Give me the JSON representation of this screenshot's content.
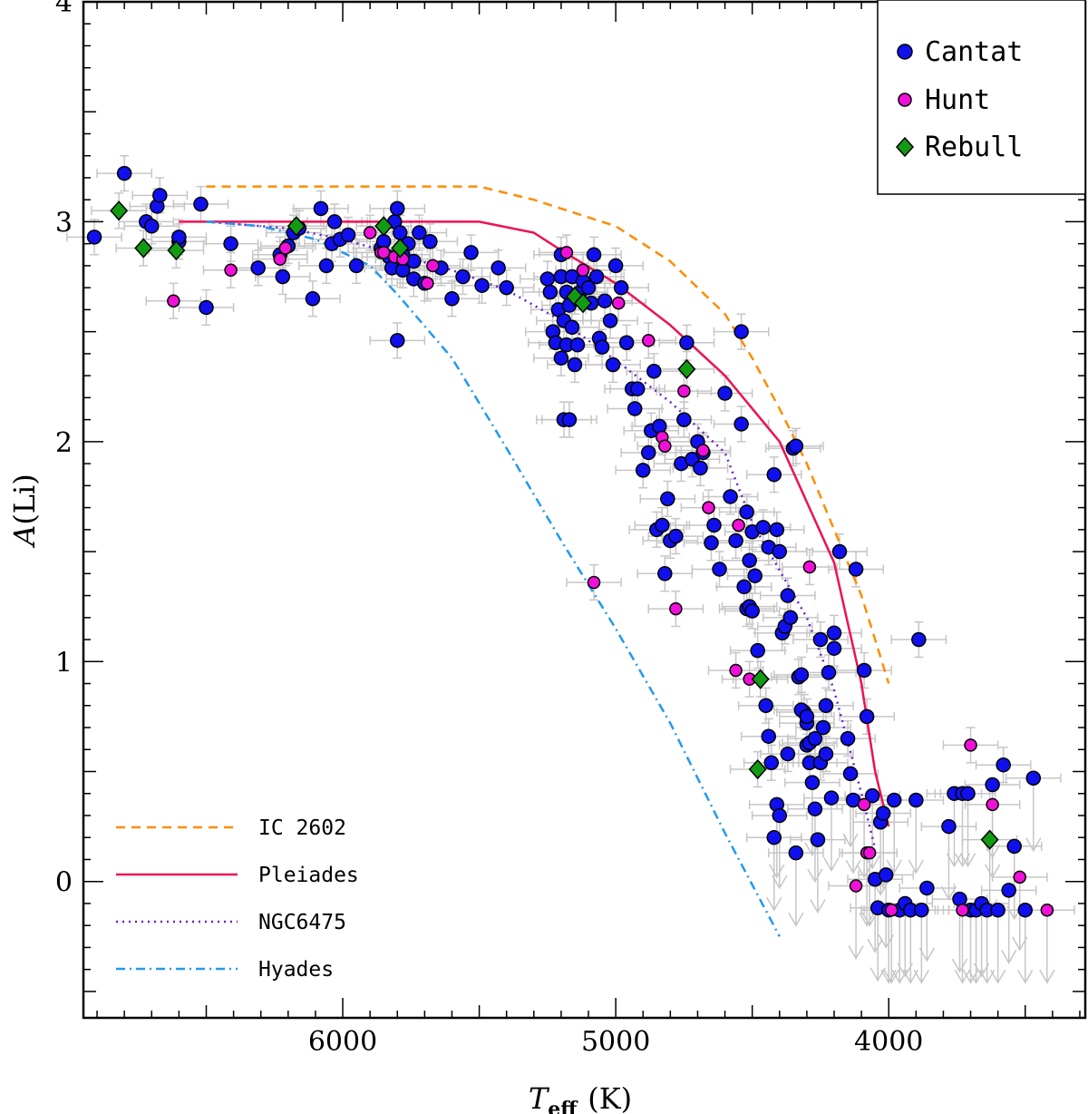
{
  "chart_data": {
    "type": "scatter",
    "title": "",
    "xlabel": {
      "symbol": "T",
      "subscript": "eff",
      "unit": "(K)"
    },
    "ylabel": {
      "symbol": "A",
      "rest": "(Li)"
    },
    "xlim": [
      6950,
      3280
    ],
    "ylim": [
      -0.62,
      4.0
    ],
    "xticks": [
      6000,
      5000,
      4000
    ],
    "yticks": [
      0,
      1,
      2,
      3,
      4
    ],
    "legend_position": "top-right",
    "point_series": [
      {
        "name": "Cantat",
        "marker": "circle",
        "color": "#1010ee",
        "points": [
          [
            6910,
            2.93
          ],
          [
            6800,
            3.22
          ],
          [
            6720,
            3.0
          ],
          [
            6700,
            2.98
          ],
          [
            6680,
            3.07
          ],
          [
            6670,
            3.12
          ],
          [
            6600,
            2.91
          ],
          [
            6600,
            2.93
          ],
          [
            6520,
            3.08
          ],
          [
            6500,
            2.61
          ],
          [
            6410,
            2.9
          ],
          [
            6310,
            2.79
          ],
          [
            6230,
            2.85
          ],
          [
            6220,
            2.75
          ],
          [
            6200,
            2.89
          ],
          [
            6180,
            2.95
          ],
          [
            6160,
            2.97
          ],
          [
            6110,
            2.65
          ],
          [
            6080,
            3.06
          ],
          [
            6060,
            2.8
          ],
          [
            6040,
            2.9
          ],
          [
            6030,
            3.0
          ],
          [
            6010,
            2.92
          ],
          [
            5980,
            2.94
          ],
          [
            5950,
            2.8
          ],
          [
            5860,
            2.88
          ],
          [
            5850,
            2.91
          ],
          [
            5830,
            2.84
          ],
          [
            5820,
            2.79
          ],
          [
            5810,
            3.0
          ],
          [
            5800,
            3.06
          ],
          [
            5790,
            2.95
          ],
          [
            5780,
            2.78
          ],
          [
            5800,
            2.46
          ],
          [
            5780,
            2.85
          ],
          [
            5760,
            2.9
          ],
          [
            5740,
            2.82
          ],
          [
            5740,
            2.74
          ],
          [
            5720,
            2.95
          ],
          [
            5700,
            2.72
          ],
          [
            5680,
            2.91
          ],
          [
            5640,
            2.79
          ],
          [
            5600,
            2.65
          ],
          [
            5560,
            2.75
          ],
          [
            5530,
            2.86
          ],
          [
            5490,
            2.71
          ],
          [
            5430,
            2.79
          ],
          [
            5400,
            2.7
          ],
          [
            5250,
            2.74
          ],
          [
            5240,
            2.68
          ],
          [
            5230,
            2.5
          ],
          [
            5220,
            2.45
          ],
          [
            5210,
            2.6
          ],
          [
            5200,
            2.75
          ],
          [
            5200,
            2.38
          ],
          [
            5190,
            2.55
          ],
          [
            5180,
            2.68
          ],
          [
            5180,
            2.44
          ],
          [
            5170,
            2.62
          ],
          [
            5160,
            2.75
          ],
          [
            5160,
            2.52
          ],
          [
            5150,
            2.35
          ],
          [
            5140,
            2.44
          ],
          [
            5130,
            2.68
          ],
          [
            5120,
            2.73
          ],
          [
            5200,
            2.85
          ],
          [
            5190,
            2.1
          ],
          [
            5170,
            2.1
          ],
          [
            5100,
            2.7
          ],
          [
            5090,
            2.63
          ],
          [
            5080,
            2.85
          ],
          [
            5070,
            2.75
          ],
          [
            5060,
            2.47
          ],
          [
            5050,
            2.43
          ],
          [
            5040,
            2.64
          ],
          [
            5020,
            2.55
          ],
          [
            5010,
            2.35
          ],
          [
            5000,
            2.8
          ],
          [
            4980,
            2.7
          ],
          [
            4960,
            2.45
          ],
          [
            4940,
            2.24
          ],
          [
            4930,
            2.15
          ],
          [
            4920,
            2.24
          ],
          [
            4900,
            1.87
          ],
          [
            4880,
            1.95
          ],
          [
            4870,
            2.05
          ],
          [
            4860,
            2.32
          ],
          [
            4840,
            2.07
          ],
          [
            4850,
            1.6
          ],
          [
            4830,
            1.62
          ],
          [
            4820,
            1.4
          ],
          [
            4810,
            1.74
          ],
          [
            4800,
            1.55
          ],
          [
            4780,
            1.57
          ],
          [
            4760,
            1.9
          ],
          [
            4750,
            2.1
          ],
          [
            4740,
            2.45
          ],
          [
            4720,
            1.92
          ],
          [
            4700,
            2.0
          ],
          [
            4690,
            1.88
          ],
          [
            4680,
            1.95
          ],
          [
            4650,
            1.54
          ],
          [
            4640,
            1.62
          ],
          [
            4620,
            1.42
          ],
          [
            4600,
            2.22
          ],
          [
            4580,
            1.75
          ],
          [
            4560,
            1.55
          ],
          [
            4540,
            2.5
          ],
          [
            4530,
            1.34
          ],
          [
            4520,
            1.24
          ],
          [
            4510,
            1.25
          ],
          [
            4500,
            1.59
          ],
          [
            4490,
            1.39
          ],
          [
            4460,
            1.61
          ],
          [
            4440,
            1.52
          ],
          [
            4420,
            1.85
          ],
          [
            4410,
            1.6
          ],
          [
            4400,
            1.5
          ],
          [
            4390,
            1.13
          ],
          [
            4380,
            1.16
          ],
          [
            4370,
            1.3
          ],
          [
            4360,
            1.2
          ],
          [
            4350,
            1.97
          ],
          [
            4340,
            1.98
          ],
          [
            4330,
            0.93
          ],
          [
            4320,
            0.94
          ],
          [
            4310,
            0.77
          ],
          [
            4300,
            0.72
          ],
          [
            4300,
            0.62
          ],
          [
            4290,
            0.54
          ],
          [
            4280,
            0.45
          ],
          [
            4270,
            0.33
          ],
          [
            4260,
            0.19
          ],
          [
            4250,
            1.1
          ],
          [
            4240,
            0.7
          ],
          [
            4230,
            0.8
          ],
          [
            4220,
            0.95
          ],
          [
            4200,
            1.06
          ],
          [
            4540,
            2.08
          ],
          [
            4520,
            1.68
          ],
          [
            4510,
            1.46
          ],
          [
            4500,
            1.23
          ],
          [
            4480,
            1.05
          ],
          [
            4450,
            0.8
          ],
          [
            4440,
            0.66
          ],
          [
            4430,
            0.54
          ],
          [
            4420,
            0.2
          ],
          [
            4410,
            0.35
          ],
          [
            4400,
            0.3
          ],
          [
            4370,
            0.58
          ],
          [
            4340,
            0.13
          ],
          [
            4320,
            0.78
          ],
          [
            4300,
            0.75
          ],
          [
            4290,
            0.63
          ],
          [
            4270,
            0.65
          ],
          [
            4250,
            0.54
          ],
          [
            4230,
            0.58
          ],
          [
            4210,
            0.38
          ],
          [
            4200,
            1.13
          ],
          [
            4180,
            1.5
          ],
          [
            4150,
            0.65
          ],
          [
            4140,
            0.49
          ],
          [
            4130,
            0.37
          ],
          [
            4120,
            1.42
          ],
          [
            4090,
            0.96
          ],
          [
            4080,
            0.75
          ],
          [
            4060,
            0.39
          ],
          [
            4050,
            0.01
          ],
          [
            4040,
            -0.12
          ],
          [
            4030,
            0.27
          ],
          [
            4020,
            0.31
          ],
          [
            4010,
            0.03
          ],
          [
            4000,
            -0.13
          ],
          [
            3980,
            0.37
          ],
          [
            3960,
            -0.13
          ],
          [
            3940,
            -0.1
          ],
          [
            3920,
            -0.13
          ],
          [
            3900,
            0.37
          ],
          [
            3890,
            1.1
          ],
          [
            3880,
            -0.13
          ],
          [
            3860,
            -0.03
          ],
          [
            3780,
            0.25
          ],
          [
            3760,
            0.4
          ],
          [
            3740,
            -0.08
          ],
          [
            3730,
            0.4
          ],
          [
            3710,
            0.4
          ],
          [
            3700,
            -0.13
          ],
          [
            3680,
            -0.13
          ],
          [
            3660,
            -0.1
          ],
          [
            3640,
            -0.13
          ],
          [
            3620,
            0.44
          ],
          [
            3600,
            -0.13
          ],
          [
            3580,
            0.53
          ],
          [
            3560,
            -0.04
          ],
          [
            3540,
            0.16
          ],
          [
            3500,
            -0.13
          ],
          [
            3470,
            0.47
          ]
        ]
      },
      {
        "name": "Hunt",
        "marker": "circle",
        "color": "#f010d8",
        "points": [
          [
            6620,
            2.64
          ],
          [
            6410,
            2.78
          ],
          [
            6230,
            2.83
          ],
          [
            6210,
            2.88
          ],
          [
            5900,
            2.95
          ],
          [
            5860,
            2.86
          ],
          [
            5850,
            2.86
          ],
          [
            5810,
            2.84
          ],
          [
            5780,
            2.83
          ],
          [
            5690,
            2.72
          ],
          [
            5670,
            2.8
          ],
          [
            5180,
            2.86
          ],
          [
            5120,
            2.78
          ],
          [
            4990,
            2.63
          ],
          [
            4880,
            2.46
          ],
          [
            4830,
            2.02
          ],
          [
            4820,
            1.98
          ],
          [
            4780,
            1.24
          ],
          [
            4750,
            2.23
          ],
          [
            4680,
            1.96
          ],
          [
            4660,
            1.7
          ],
          [
            5080,
            1.36
          ],
          [
            4550,
            1.62
          ],
          [
            4560,
            0.96
          ],
          [
            4510,
            0.92
          ],
          [
            4290,
            1.43
          ],
          [
            4120,
            -0.02
          ],
          [
            4090,
            0.35
          ],
          [
            4080,
            0.13
          ],
          [
            4070,
            0.13
          ],
          [
            3990,
            -0.13
          ],
          [
            3730,
            -0.13
          ],
          [
            3700,
            0.62
          ],
          [
            3620,
            0.35
          ],
          [
            3520,
            0.02
          ],
          [
            3420,
            -0.13
          ]
        ]
      },
      {
        "name": "Rebull",
        "marker": "diamond",
        "color": "#139a13",
        "points": [
          [
            6820,
            3.05
          ],
          [
            6730,
            2.88
          ],
          [
            6610,
            2.87
          ],
          [
            6170,
            2.98
          ],
          [
            5850,
            2.98
          ],
          [
            5790,
            2.88
          ],
          [
            5150,
            2.66
          ],
          [
            5120,
            2.63
          ],
          [
            4740,
            2.33
          ],
          [
            4470,
            0.92
          ],
          [
            4480,
            0.51
          ],
          [
            3630,
            0.19
          ]
        ]
      }
    ],
    "line_series": [
      {
        "name": "IC 2602",
        "style": "dashed",
        "color": "#ff8c00",
        "x": [
          6500,
          6000,
          5500,
          5300,
          5000,
          4800,
          4600,
          4500,
          4400,
          4300,
          4200,
          4100,
          4050,
          4000
        ],
        "y": [
          3.16,
          3.16,
          3.16,
          3.1,
          2.98,
          2.82,
          2.58,
          2.38,
          2.15,
          1.9,
          1.6,
          1.3,
          1.1,
          0.9
        ]
      },
      {
        "name": "Pleiades",
        "style": "solid",
        "color": "#ee1155",
        "x": [
          6600,
          6500,
          6000,
          5500,
          5300,
          5200,
          5000,
          4800,
          4600,
          4400,
          4200,
          4100,
          4050,
          4000
        ],
        "y": [
          3.0,
          3.0,
          3.0,
          3.0,
          2.95,
          2.87,
          2.72,
          2.53,
          2.3,
          2.0,
          1.45,
          0.9,
          0.5,
          0.25
        ]
      },
      {
        "name": "NGC6475",
        "style": "dotted",
        "color": "#6a20cc",
        "x": [
          6500,
          6200,
          6000,
          5800,
          5600,
          5400,
          5200,
          5000,
          4800,
          4600,
          4500,
          4300,
          4200,
          4100,
          4050
        ],
        "y": [
          3.0,
          2.97,
          2.92,
          2.85,
          2.78,
          2.69,
          2.55,
          2.37,
          2.18,
          1.95,
          1.63,
          1.2,
          0.87,
          0.4,
          0.15
        ]
      },
      {
        "name": "Hyades",
        "style": "dashdot",
        "color": "#2299ee",
        "x": [
          6500,
          6300,
          6100,
          5900,
          5800,
          5600,
          5400,
          5200,
          5000,
          4800,
          4600,
          4400
        ],
        "y": [
          3.0,
          2.98,
          2.92,
          2.8,
          2.67,
          2.38,
          1.97,
          1.55,
          1.15,
          0.72,
          0.22,
          -0.25
        ]
      }
    ]
  }
}
